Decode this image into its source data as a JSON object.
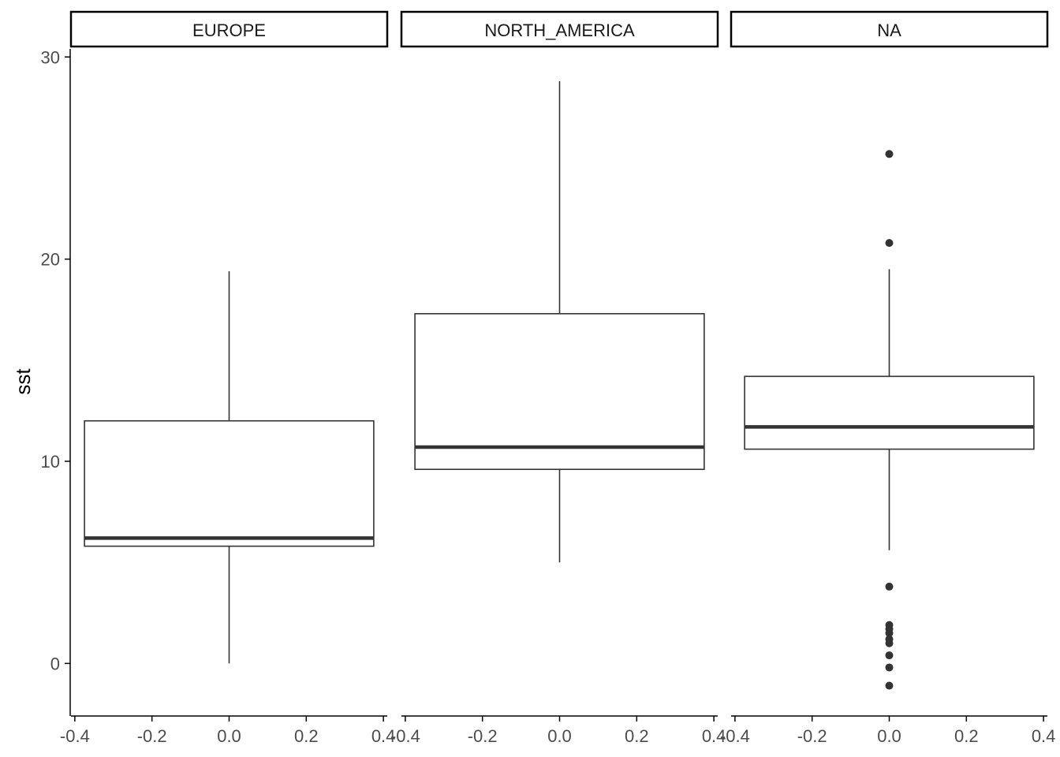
{
  "chart_data": {
    "type": "boxplot",
    "facets": [
      "EUROPE",
      "NORTH_AMERICA",
      "NA"
    ],
    "ylabel": "sst",
    "xlabel": "",
    "ylim": [
      -2.6,
      30.4
    ],
    "xlim": [
      -0.41,
      0.41
    ],
    "yticks": [
      0,
      10,
      20,
      30
    ],
    "xticks": [
      -0.4,
      -0.2,
      0.0,
      0.2,
      0.4
    ],
    "xtick_labels": [
      "-0.4",
      "-0.2",
      "0.0",
      "0.2",
      "0.4"
    ],
    "grid": false,
    "boxes": [
      {
        "facet": "EUROPE",
        "whisker_low": 0.0,
        "q1": 5.8,
        "median": 6.2,
        "q3": 12.0,
        "whisker_high": 19.4,
        "outliers": []
      },
      {
        "facet": "NORTH_AMERICA",
        "whisker_low": 5.0,
        "q1": 9.6,
        "median": 10.7,
        "q3": 17.3,
        "whisker_high": 28.8,
        "outliers": []
      },
      {
        "facet": "NA",
        "whisker_low": 5.6,
        "q1": 10.6,
        "median": 11.7,
        "q3": 14.2,
        "whisker_high": 19.5,
        "outliers": [
          25.2,
          20.8,
          3.8,
          1.9,
          1.7,
          1.5,
          1.2,
          1.0,
          0.4,
          -0.2,
          -1.1
        ]
      }
    ],
    "colors": {
      "box_line": "#333333",
      "axis": "#000000",
      "strip_border": "#000000",
      "background": "#ffffff"
    }
  }
}
